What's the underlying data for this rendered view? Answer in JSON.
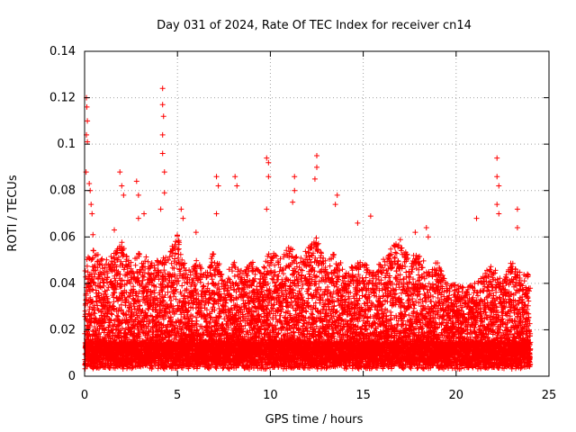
{
  "chart_data": {
    "type": "scatter",
    "title": "Day 031 of 2024, Rate Of TEC Index for receiver cn14",
    "xlabel": "GPS time / hours",
    "ylabel": "ROTI / TECUs",
    "xlim": [
      0,
      25
    ],
    "ylim": [
      0,
      0.14
    ],
    "xticks": [
      0,
      5,
      10,
      15,
      20,
      25
    ],
    "xtick_labels": [
      "0",
      "5",
      "10",
      "15",
      "20",
      "25"
    ],
    "yticks": [
      0,
      0.02,
      0.04,
      0.06,
      0.08,
      0.1,
      0.12,
      0.14
    ],
    "ytick_labels": [
      "0",
      "0.02",
      "0.04",
      "0.06",
      "0.08",
      "0.1",
      "0.12",
      "0.14"
    ],
    "grid": true,
    "marker": "+",
    "color": "#ff0000",
    "envelope": {
      "description": "Approximate upper envelope of dense point cloud (hours, ROTI)",
      "x": [
        0,
        0.5,
        1,
        1.5,
        2,
        2.5,
        3,
        3.5,
        4,
        4.5,
        5,
        5.5,
        6,
        6.5,
        7,
        7.5,
        8,
        8.5,
        9,
        9.5,
        10,
        10.5,
        11,
        11.5,
        12,
        12.5,
        13,
        13.5,
        14,
        14.5,
        15,
        15.5,
        16,
        16.5,
        17,
        17.5,
        18,
        18.5,
        19,
        19.5,
        20,
        20.5,
        21,
        21.5,
        22,
        22.5,
        23,
        23.5,
        24
      ],
      "y": [
        0.05,
        0.055,
        0.05,
        0.052,
        0.058,
        0.05,
        0.055,
        0.05,
        0.05,
        0.052,
        0.062,
        0.045,
        0.05,
        0.045,
        0.055,
        0.042,
        0.05,
        0.045,
        0.05,
        0.045,
        0.055,
        0.05,
        0.058,
        0.05,
        0.055,
        0.06,
        0.05,
        0.055,
        0.045,
        0.048,
        0.05,
        0.045,
        0.05,
        0.055,
        0.06,
        0.05,
        0.055,
        0.045,
        0.05,
        0.04,
        0.04,
        0.038,
        0.04,
        0.045,
        0.048,
        0.04,
        0.05,
        0.045,
        0.045
      ]
    },
    "outliers": [
      {
        "x": 0.1,
        "y": 0.12
      },
      {
        "x": 0.12,
        "y": 0.116
      },
      {
        "x": 0.15,
        "y": 0.11
      },
      {
        "x": 0.1,
        "y": 0.104
      },
      {
        "x": 0.15,
        "y": 0.101
      },
      {
        "x": 0.08,
        "y": 0.088
      },
      {
        "x": 0.25,
        "y": 0.083
      },
      {
        "x": 0.3,
        "y": 0.08
      },
      {
        "x": 0.35,
        "y": 0.074
      },
      {
        "x": 0.4,
        "y": 0.07
      },
      {
        "x": 1.9,
        "y": 0.088
      },
      {
        "x": 2.0,
        "y": 0.082
      },
      {
        "x": 2.1,
        "y": 0.078
      },
      {
        "x": 2.8,
        "y": 0.084
      },
      {
        "x": 2.9,
        "y": 0.078
      },
      {
        "x": 2.9,
        "y": 0.068
      },
      {
        "x": 3.2,
        "y": 0.07
      },
      {
        "x": 4.2,
        "y": 0.124
      },
      {
        "x": 4.2,
        "y": 0.117
      },
      {
        "x": 4.25,
        "y": 0.112
      },
      {
        "x": 4.2,
        "y": 0.104
      },
      {
        "x": 4.2,
        "y": 0.096
      },
      {
        "x": 4.3,
        "y": 0.088
      },
      {
        "x": 4.3,
        "y": 0.079
      },
      {
        "x": 4.1,
        "y": 0.072
      },
      {
        "x": 5.2,
        "y": 0.072
      },
      {
        "x": 5.3,
        "y": 0.068
      },
      {
        "x": 7.1,
        "y": 0.086
      },
      {
        "x": 7.2,
        "y": 0.082
      },
      {
        "x": 7.1,
        "y": 0.07
      },
      {
        "x": 8.1,
        "y": 0.086
      },
      {
        "x": 8.2,
        "y": 0.082
      },
      {
        "x": 9.8,
        "y": 0.094
      },
      {
        "x": 9.9,
        "y": 0.092
      },
      {
        "x": 9.9,
        "y": 0.086
      },
      {
        "x": 9.8,
        "y": 0.072
      },
      {
        "x": 11.3,
        "y": 0.086
      },
      {
        "x": 11.3,
        "y": 0.08
      },
      {
        "x": 11.2,
        "y": 0.075
      },
      {
        "x": 12.5,
        "y": 0.095
      },
      {
        "x": 12.5,
        "y": 0.09
      },
      {
        "x": 12.4,
        "y": 0.085
      },
      {
        "x": 13.6,
        "y": 0.078
      },
      {
        "x": 13.5,
        "y": 0.074
      },
      {
        "x": 15.4,
        "y": 0.069
      },
      {
        "x": 22.2,
        "y": 0.094
      },
      {
        "x": 22.2,
        "y": 0.086
      },
      {
        "x": 22.3,
        "y": 0.082
      },
      {
        "x": 22.2,
        "y": 0.074
      },
      {
        "x": 22.3,
        "y": 0.07
      },
      {
        "x": 23.3,
        "y": 0.072
      },
      {
        "x": 23.3,
        "y": 0.064
      },
      {
        "x": 21.1,
        "y": 0.068
      },
      {
        "x": 17.8,
        "y": 0.062
      },
      {
        "x": 18.4,
        "y": 0.064
      },
      {
        "x": 18.5,
        "y": 0.06
      },
      {
        "x": 0.45,
        "y": 0.061
      },
      {
        "x": 1.6,
        "y": 0.063
      },
      {
        "x": 6.0,
        "y": 0.062
      },
      {
        "x": 14.7,
        "y": 0.066
      }
    ],
    "baseline_min": 0.003,
    "median_level": 0.016,
    "sample_interval_hours": 0.004
  }
}
